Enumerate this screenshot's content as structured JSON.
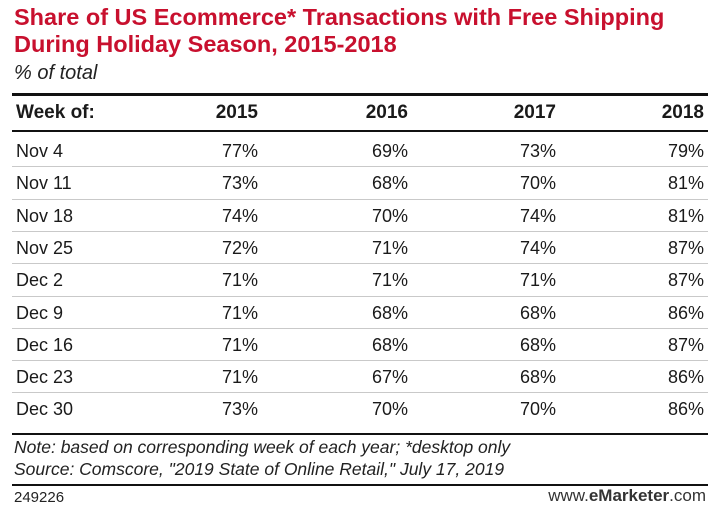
{
  "title": "Share of US Ecommerce* Transactions with Free Shipping During Holiday Season, 2015-2018",
  "subtitle": "% of total",
  "chart_data": {
    "type": "table",
    "columns": [
      "Week of:",
      "2015",
      "2016",
      "2017",
      "2018"
    ],
    "rows": [
      [
        "Nov 4",
        "77%",
        "69%",
        "73%",
        "79%"
      ],
      [
        "Nov 11",
        "73%",
        "68%",
        "70%",
        "81%"
      ],
      [
        "Nov 18",
        "74%",
        "70%",
        "74%",
        "81%"
      ],
      [
        "Nov 25",
        "72%",
        "71%",
        "74%",
        "87%"
      ],
      [
        "Dec 2",
        "71%",
        "71%",
        "71%",
        "87%"
      ],
      [
        "Dec 9",
        "71%",
        "68%",
        "68%",
        "86%"
      ],
      [
        "Dec 16",
        "71%",
        "68%",
        "68%",
        "87%"
      ],
      [
        "Dec 23",
        "71%",
        "67%",
        "68%",
        "86%"
      ],
      [
        "Dec 30",
        "73%",
        "70%",
        "70%",
        "86%"
      ]
    ]
  },
  "note": "Note: based on corresponding week of each year; *desktop only",
  "source": "Source: Comscore, \"2019 State of Online Retail,\" July 17, 2019",
  "footer": {
    "chart_id": "249226",
    "site_prefix": "www.",
    "site_brand": "eMarketer",
    "site_suffix": ".com"
  }
}
